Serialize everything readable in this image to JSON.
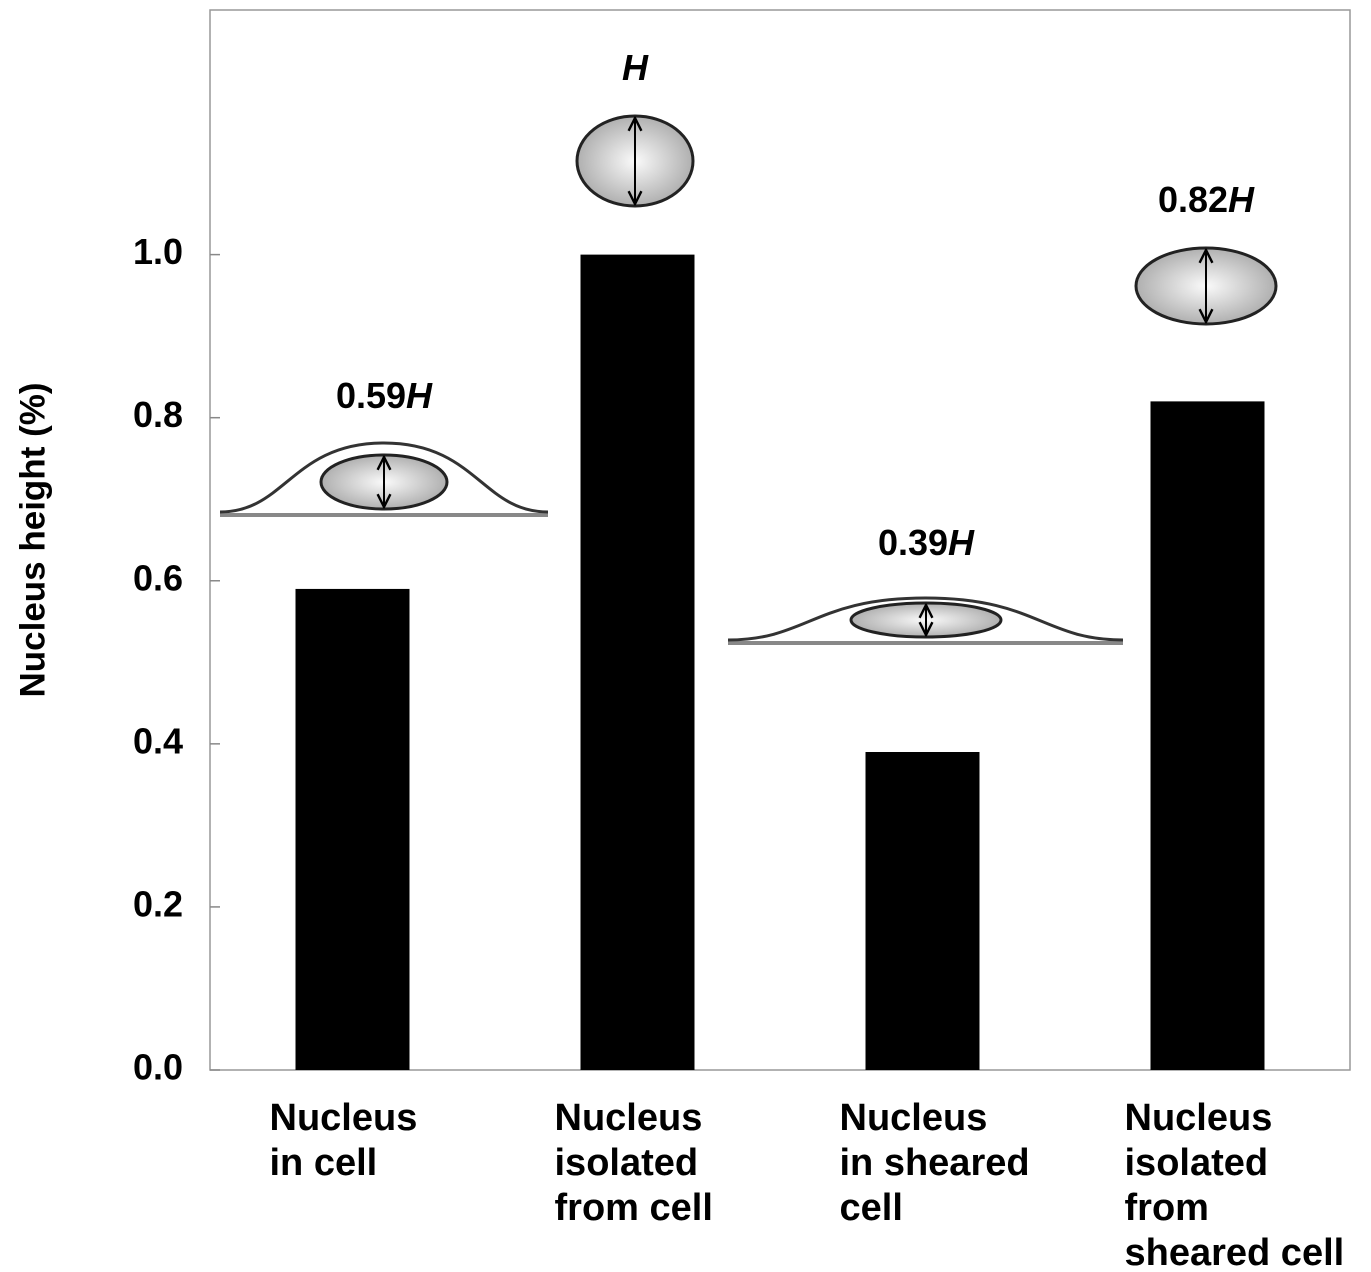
{
  "chart_data": {
    "type": "bar",
    "y_label": "Nucleus height (%)",
    "categories": [
      "Nucleus\nin cell",
      "Nucleus\nisolated\nfrom cell",
      "Nucleus\nin sheared\ncell",
      "Nucleus\nisolated\nfrom\nsheared cell"
    ],
    "values": [
      0.59,
      1.0,
      0.39,
      0.82
    ],
    "value_labels": [
      "0.59H",
      "H",
      "0.39H",
      "0.82H"
    ],
    "color": "#000000",
    "ylim": [
      0,
      1.3
    ],
    "yticks": [
      {
        "value": 0,
        "label": "0.0"
      },
      0.2,
      0.4,
      0.6,
      0.8,
      {
        "value": 1,
        "label": "1.0"
      }
    ]
  }
}
